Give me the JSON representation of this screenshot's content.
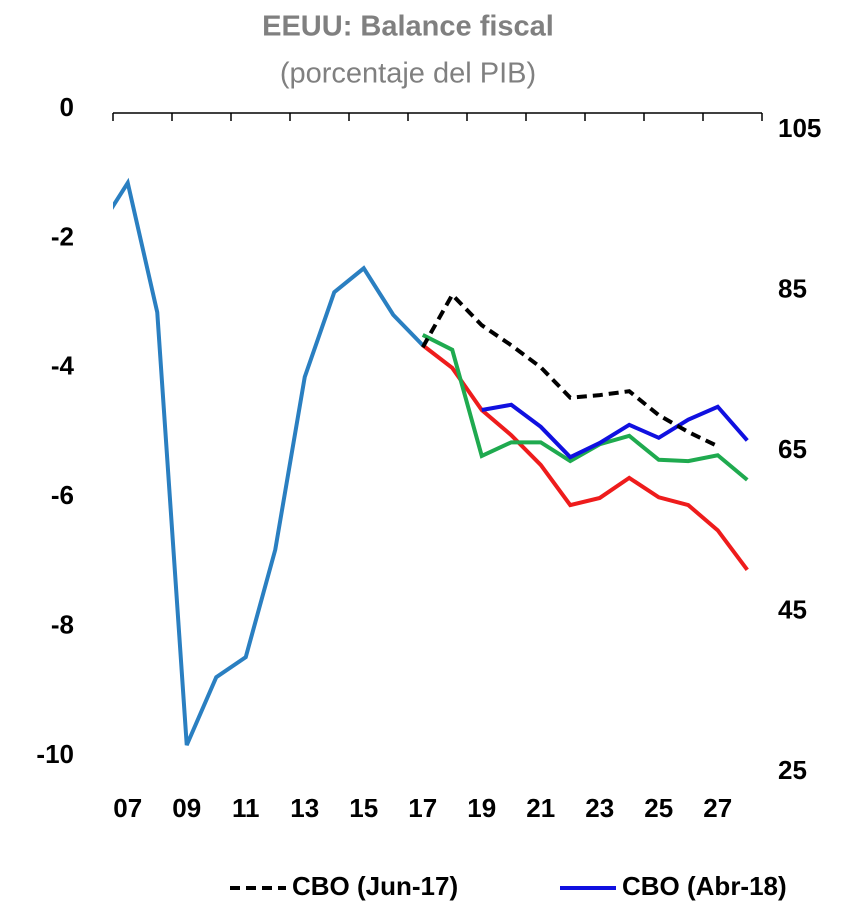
{
  "chart_data": {
    "type": "line",
    "title": "EEUU: Balance fiscal",
    "subtitle": "(porcentaje del PIB)",
    "xlim": [
      2006.5,
      2028.5
    ],
    "xticks": [
      {
        "value": 2007,
        "label": "07"
      },
      {
        "value": 2009,
        "label": "09"
      },
      {
        "value": 2011,
        "label": "11"
      },
      {
        "value": 2013,
        "label": "13"
      },
      {
        "value": 2015,
        "label": "15"
      },
      {
        "value": 2017,
        "label": "17"
      },
      {
        "value": 2019,
        "label": "19"
      },
      {
        "value": 2021,
        "label": "21"
      },
      {
        "value": 2023,
        "label": "23"
      },
      {
        "value": 2025,
        "label": "25"
      },
      {
        "value": 2027,
        "label": "27"
      }
    ],
    "ylim": [
      -10,
      0
    ],
    "yticks": [
      0,
      -2,
      -4,
      -6,
      -8,
      -10
    ],
    "y2lim": [
      25,
      105
    ],
    "y2ticks": [
      25,
      45,
      65,
      85,
      105
    ],
    "series": [
      {
        "color": "#2a7fc1",
        "x": [
          2006,
          2007,
          2008,
          2009,
          2010,
          2011,
          2012,
          2013,
          2014,
          2015,
          2016,
          2017
        ],
        "values": [
          -1.8,
          -1.08,
          -3.08,
          -9.77,
          -8.72,
          -8.41,
          -6.75,
          -4.08,
          -2.77,
          -2.4,
          -3.12,
          -3.59
        ]
      },
      {
        "color": "#ee1c1c",
        "x": [
          2017,
          2018,
          2019,
          2020,
          2021,
          2022,
          2023,
          2024,
          2025,
          2026,
          2027,
          2028
        ],
        "values": [
          -3.59,
          -3.94,
          -4.59,
          -4.98,
          -5.44,
          -6.06,
          -5.95,
          -5.64,
          -5.94,
          -6.06,
          -6.45,
          -7.06
        ]
      },
      {
        "color": "#1faa4f",
        "x": [
          2017,
          2018,
          2019,
          2020,
          2021,
          2022,
          2023,
          2024,
          2025,
          2026,
          2027,
          2028
        ],
        "values": [
          -3.43,
          -3.66,
          -5.3,
          -5.09,
          -5.09,
          -5.38,
          -5.12,
          -4.99,
          -5.36,
          -5.38,
          -5.29,
          -5.67
        ]
      },
      {
        "name": "CBO (Abr-18)",
        "color": "#1010e0",
        "x": [
          2019,
          2020,
          2021,
          2022,
          2023,
          2024,
          2025,
          2026,
          2027,
          2028
        ],
        "values": [
          -4.59,
          -4.51,
          -4.85,
          -5.32,
          -5.1,
          -4.82,
          -5.02,
          -4.74,
          -4.54,
          -5.06
        ]
      },
      {
        "name": "CBO (Jun-17)",
        "color": "#000000",
        "dashed": true,
        "x": [
          2017,
          2018,
          2019,
          2020,
          2021,
          2022,
          2023,
          2024,
          2025,
          2026,
          2027
        ],
        "values": [
          -3.62,
          -2.81,
          -3.28,
          -3.59,
          -3.93,
          -4.4,
          -4.36,
          -4.3,
          -4.67,
          -4.93,
          -5.15
        ]
      }
    ]
  }
}
